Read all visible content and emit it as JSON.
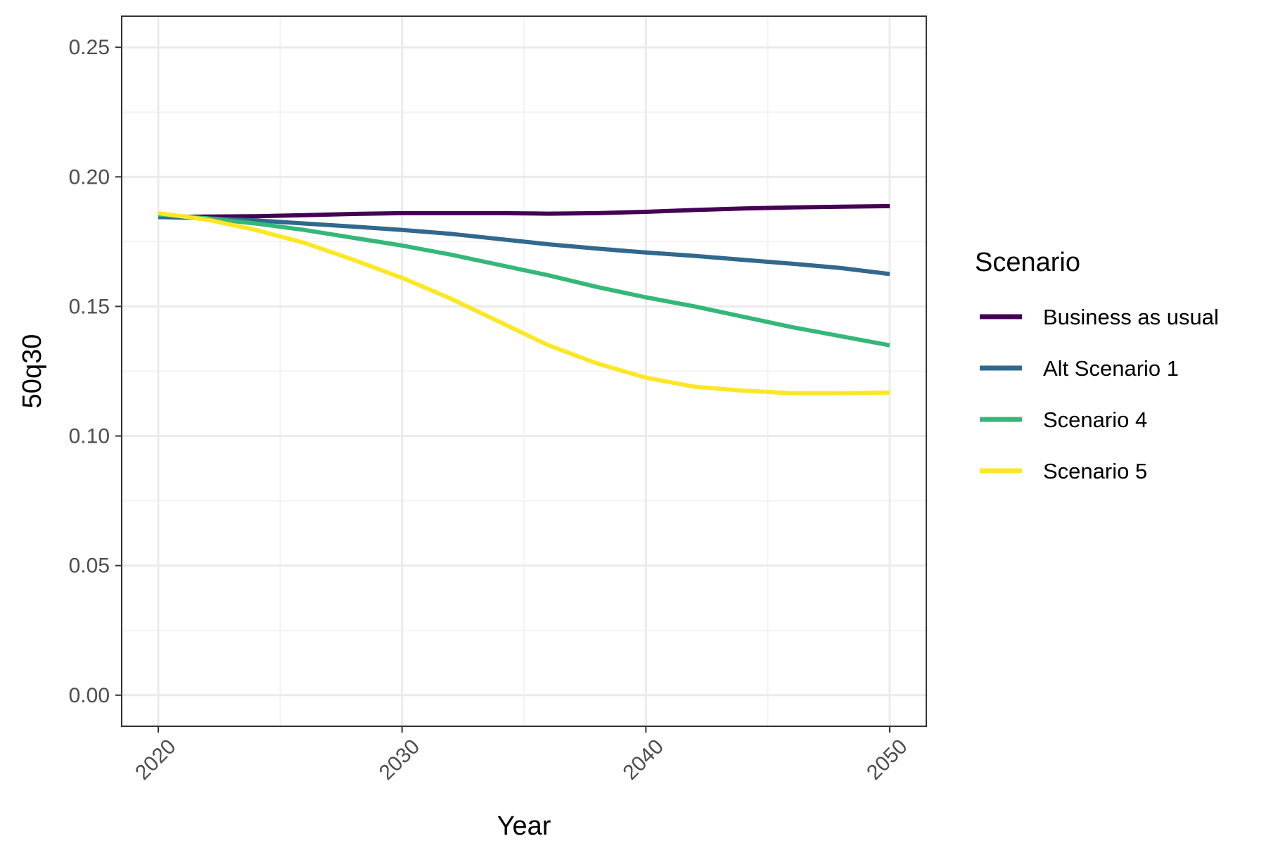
{
  "chart_data": {
    "type": "line",
    "xlabel": "Year",
    "ylabel": "50q30",
    "xlim": [
      2018.5,
      2051.5
    ],
    "ylim": [
      -0.012,
      0.262
    ],
    "x_ticks": [
      2020,
      2030,
      2040,
      2050
    ],
    "x_minor_ticks": [
      2025,
      2035,
      2045
    ],
    "y_ticks": [
      0.0,
      0.05,
      0.1,
      0.15,
      0.2,
      0.25
    ],
    "y_tick_labels": [
      "0.00",
      "0.05",
      "0.10",
      "0.15",
      "0.20",
      "0.25"
    ],
    "y_minor_ticks": [
      0.025,
      0.075,
      0.125,
      0.175,
      0.225
    ],
    "grid": true,
    "legend": {
      "title": "Scenario",
      "position": "right"
    },
    "x": [
      2020,
      2022,
      2024,
      2026,
      2028,
      2030,
      2032,
      2034,
      2036,
      2038,
      2040,
      2042,
      2044,
      2046,
      2048,
      2050
    ],
    "series": [
      {
        "name": "Business as usual",
        "color": "#440154",
        "values": [
          0.1845,
          0.1847,
          0.1848,
          0.1852,
          0.1857,
          0.186,
          0.186,
          0.186,
          0.1858,
          0.186,
          0.1865,
          0.1872,
          0.1878,
          0.1882,
          0.1885,
          0.1887
        ]
      },
      {
        "name": "Alt Scenario 1",
        "color": "#31688E",
        "values": [
          0.1845,
          0.184,
          0.1832,
          0.182,
          0.1808,
          0.1795,
          0.178,
          0.176,
          0.174,
          0.1723,
          0.1708,
          0.1695,
          0.168,
          0.1665,
          0.1648,
          0.1625
        ]
      },
      {
        "name": "Scenario 4",
        "color": "#35B779",
        "values": [
          0.1855,
          0.184,
          0.182,
          0.1795,
          0.1765,
          0.1735,
          0.17,
          0.166,
          0.162,
          0.1575,
          0.1535,
          0.15,
          0.146,
          0.142,
          0.1385,
          0.135
        ]
      },
      {
        "name": "Scenario 5",
        "color": "#FDE725",
        "values": [
          0.186,
          0.1835,
          0.1795,
          0.1745,
          0.168,
          0.161,
          0.153,
          0.144,
          0.135,
          0.128,
          0.1225,
          0.119,
          0.1175,
          0.1165,
          0.1165,
          0.1168
        ]
      }
    ]
  }
}
